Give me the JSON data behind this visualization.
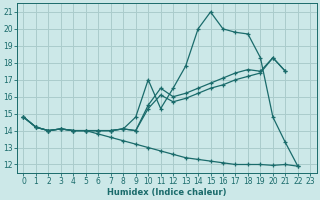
{
  "xlabel": "Humidex (Indice chaleur)",
  "background_color": "#cce8e8",
  "grid_color": "#aacccc",
  "line_color": "#1a6b6b",
  "xlim": [
    -0.5,
    23.5
  ],
  "ylim": [
    11.5,
    21.5
  ],
  "xticks": [
    0,
    1,
    2,
    3,
    4,
    5,
    6,
    7,
    8,
    9,
    10,
    11,
    12,
    13,
    14,
    15,
    16,
    17,
    18,
    19,
    20,
    21,
    22,
    23
  ],
  "yticks": [
    12,
    13,
    14,
    15,
    16,
    17,
    18,
    19,
    20,
    21
  ],
  "series": [
    {
      "x": [
        0,
        1,
        2,
        3,
        4,
        5,
        6,
        7,
        8,
        9,
        10,
        11,
        12,
        13,
        14,
        15,
        16,
        17,
        18,
        19,
        20,
        21,
        22
      ],
      "y": [
        14.8,
        14.2,
        14.0,
        14.1,
        14.0,
        14.0,
        14.0,
        14.0,
        14.1,
        14.8,
        17.0,
        15.3,
        16.5,
        17.8,
        20.0,
        21.0,
        20.0,
        19.8,
        19.7,
        18.3,
        14.8,
        13.3,
        11.9
      ]
    },
    {
      "x": [
        0,
        1,
        2,
        3,
        4,
        5,
        6,
        7,
        8,
        9,
        10,
        11,
        12,
        13,
        14,
        15,
        16,
        17,
        18,
        19,
        20,
        21
      ],
      "y": [
        14.8,
        14.2,
        14.0,
        14.1,
        14.0,
        14.0,
        14.0,
        14.0,
        14.1,
        14.0,
        15.5,
        16.5,
        16.0,
        16.2,
        16.5,
        16.8,
        17.1,
        17.4,
        17.6,
        17.5,
        18.3,
        17.5
      ]
    },
    {
      "x": [
        0,
        1,
        2,
        3,
        4,
        5,
        6,
        7,
        8,
        9,
        10,
        11,
        12,
        13,
        14,
        15,
        16,
        17,
        18,
        19,
        20,
        21
      ],
      "y": [
        14.8,
        14.2,
        14.0,
        14.1,
        14.0,
        14.0,
        14.0,
        14.0,
        14.1,
        14.0,
        15.3,
        16.1,
        15.7,
        15.9,
        16.2,
        16.5,
        16.7,
        17.0,
        17.2,
        17.4,
        18.3,
        17.5
      ]
    },
    {
      "x": [
        0,
        1,
        2,
        3,
        4,
        5,
        6,
        7,
        8,
        9,
        10,
        11,
        12,
        13,
        14,
        15,
        16,
        17,
        18,
        19,
        20,
        21,
        22
      ],
      "y": [
        14.8,
        14.2,
        14.0,
        14.1,
        14.0,
        14.0,
        13.8,
        13.6,
        13.4,
        13.2,
        13.0,
        12.8,
        12.6,
        12.4,
        12.3,
        12.2,
        12.1,
        12.0,
        12.0,
        12.0,
        11.95,
        12.0,
        11.9
      ]
    }
  ]
}
